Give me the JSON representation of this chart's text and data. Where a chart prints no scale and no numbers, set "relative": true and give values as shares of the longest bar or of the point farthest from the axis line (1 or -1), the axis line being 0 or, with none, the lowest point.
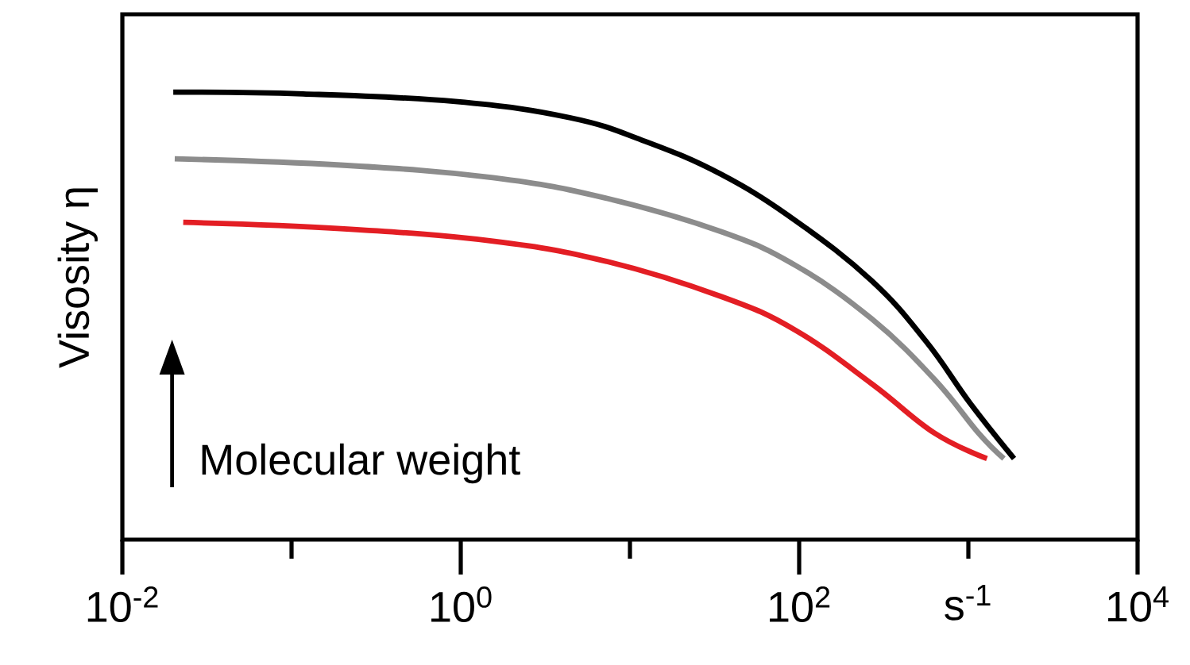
{
  "chart_data": {
    "type": "line",
    "ylabel": "Visosity η",
    "xlabel": "s$^{-1}$",
    "log": "x",
    "relative": true,
    "marker": "none",
    "line_style": "solid",
    "tick_labels": "x",
    "xlim": [
      0.01,
      10000
    ],
    "xticks": [
      {
        "value": 0.01,
        "label": "10$^{-2}$"
      },
      {
        "value": 0.1,
        "label": null
      },
      {
        "value": 1,
        "label": "10$^{0}$"
      },
      {
        "value": 10,
        "label": null
      },
      {
        "value": 100,
        "label": "10$^{2}$"
      },
      {
        "value": 1000,
        "label": null
      },
      {
        "value": 10000,
        "label": "10$^{4}$"
      }
    ],
    "annotations": [
      "Molecular weight"
    ],
    "series": [
      {
        "color": "#000000",
        "x": [
          0.02,
          0.117,
          0.93,
          4.4,
          12.3,
          34.7,
          95,
          269,
          562,
          1023,
          1862
        ],
        "values": [
          1.0,
          0.996,
          0.979,
          0.943,
          0.89,
          0.816,
          0.713,
          0.578,
          0.443,
          0.305,
          0.181
        ]
      },
      {
        "color": "#8c8c8c",
        "x": [
          0.0204,
          0.195,
          1.55,
          7.4,
          34.7,
          95,
          269,
          631,
          1148,
          1622
        ],
        "values": [
          0.851,
          0.837,
          0.809,
          0.762,
          0.688,
          0.613,
          0.493,
          0.358,
          0.238,
          0.181
        ]
      },
      {
        "color": "#e31e24",
        "x": [
          0.0229,
          0.195,
          1.55,
          7.4,
          34.7,
          95,
          269,
          631,
          1288
        ],
        "values": [
          0.709,
          0.695,
          0.667,
          0.621,
          0.543,
          0.468,
          0.348,
          0.238,
          0.181
        ]
      }
    ]
  }
}
